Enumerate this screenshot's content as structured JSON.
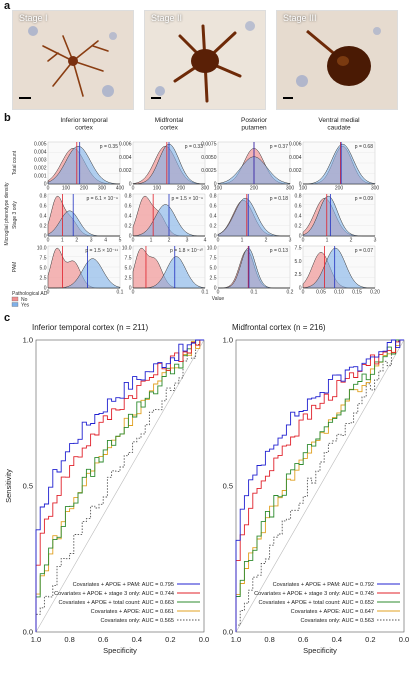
{
  "panel_a": {
    "letter": "a",
    "stages": [
      "Stage I",
      "Stage II",
      "Stage III"
    ]
  },
  "panel_b": {
    "letter": "b",
    "columns": [
      {
        "title": [
          "Inferior temporal",
          "cortex"
        ]
      },
      {
        "title": [
          "Midfrontal",
          "cortex"
        ]
      },
      {
        "title": [
          "Posterior",
          "putamen"
        ]
      },
      {
        "title": [
          "Ventral medial",
          "caudate"
        ]
      }
    ],
    "row_labels": [
      "Total count",
      "Stage 3 only",
      "PAM"
    ],
    "shared_ylabel": "Microglial phenotype density",
    "xlabel": "Value",
    "legend_title": "Pathological AD",
    "legend_items": [
      {
        "label": "No",
        "color": "#f08f8f"
      },
      {
        "label": "Yes",
        "color": "#7fb0e8"
      }
    ],
    "pvalues": [
      [
        "p = 0.35",
        "p = 0.33",
        "p = 0.37",
        "p = 0.68"
      ],
      [
        "p = 6.1 × 10⁻⁹",
        "p = 1.5 × 10⁻⁹",
        "p = 0.18",
        "p = 0.09"
      ],
      [
        "p = 1.5 × 10⁻¹¹",
        "p = 1.8 × 10⁻¹⁰",
        "p = 0.13",
        "p = 0.07"
      ]
    ],
    "x_ticks": [
      [
        [
          "0",
          "100",
          "200",
          "300",
          "400"
        ],
        [
          "0",
          "100",
          "200",
          "300"
        ],
        [
          "100",
          "200",
          "300"
        ],
        [
          "100",
          "200",
          "300"
        ]
      ],
      [
        [
          "0",
          "1",
          "2",
          "3",
          "4",
          "5"
        ],
        [
          "0",
          "1",
          "2",
          "3",
          "4"
        ],
        [
          "0",
          "1",
          "2",
          "3"
        ],
        [
          "0",
          "1",
          "2",
          "3"
        ]
      ],
      [
        [
          "0",
          "0.1"
        ],
        [
          "0",
          "0.1"
        ],
        [
          "0",
          "0.1",
          "0.2"
        ],
        [
          "0",
          "0.05",
          "0.10",
          "0.15",
          "0.20"
        ]
      ]
    ],
    "y_ticks": [
      [
        [
          "0",
          "0.001",
          "0.002",
          "0.003",
          "0.004",
          "0.005"
        ],
        [
          "0",
          "0.002",
          "0.004",
          "0.006"
        ],
        [
          "0",
          "0.0025",
          "0.0050",
          "0.0075"
        ],
        [
          "0",
          "0.002",
          "0.004",
          "0.006"
        ]
      ],
      [
        [
          "0",
          "0.2",
          "0.4",
          "0.6",
          "0.8"
        ],
        [
          "0",
          "0.2",
          "0.4",
          "0.6",
          "0.8"
        ],
        [
          "0",
          "0.2",
          "0.4",
          "0.6",
          "0.8"
        ],
        [
          "0",
          "0.2",
          "0.4",
          "0.6",
          "0.8"
        ]
      ],
      [
        [
          "0",
          "2.5",
          "5.0",
          "7.5",
          "10.0"
        ],
        [
          "0",
          "2.5",
          "5.0",
          "7.5",
          "10.0"
        ],
        [
          "0",
          "2.5",
          "5.0",
          "7.5",
          "10.0"
        ],
        [
          "0",
          "2.5",
          "5.0",
          "7.5"
        ]
      ]
    ]
  },
  "panel_c": {
    "letter": "c",
    "xlabel": "Specificity",
    "ylabel": "Sensitivity",
    "x_ticks": [
      "1.0",
      "0.8",
      "0.6",
      "0.4",
      "0.2",
      "0.0"
    ],
    "y_ticks": [
      "0.0",
      "0.5",
      "1.0"
    ],
    "plots": [
      {
        "title": "Inferior temporal cortex (n = 211)",
        "legend": [
          "Covariates + APOE + PAM: AUC = 0.795",
          "Covariates + APOE + stage 3 only: AUC = 0.744",
          "Covariates + APOE + total count: AUC = 0.663",
          "Covariates + APOE: AUC = 0.661",
          "Covariates only: AUC = 0.565"
        ]
      },
      {
        "title": "Midfrontal cortex (n = 216)",
        "legend": [
          "Covariates + APOE + PAM: AUC = 0.792",
          "Covariates + APOE + stage 3 only: AUC = 0.745",
          "Covariates + APOE + total count: AUC = 0.652",
          "Covariates + APOE: AUC = 0.647",
          "Covariates only: AUC = 0.563"
        ]
      }
    ],
    "curve_colors": [
      "#2020d0",
      "#e0202a",
      "#2e8b2e",
      "#e0a020",
      "#555555"
    ]
  },
  "chart_data": [
    {
      "type": "area",
      "subplot": "Inferior temporal cortex / Total count",
      "series": [
        {
          "name": "No",
          "peak_x": 150
        },
        {
          "name": "Yes",
          "peak_x": 170
        }
      ],
      "xlim": [
        0,
        400
      ],
      "ylim": [
        0,
        0.005
      ]
    },
    {
      "type": "area",
      "subplot": "Inferior temporal cortex / Stage 3 only",
      "series": [
        {
          "name": "No",
          "peak_x": 0.6
        },
        {
          "name": "Yes",
          "peak_x": 1.4
        }
      ],
      "xlim": [
        0,
        5
      ],
      "ylim": [
        0,
        0.8
      ]
    },
    {
      "type": "area",
      "subplot": "Inferior temporal cortex / PAM",
      "series": [
        {
          "name": "No",
          "peak_x": 0.02
        },
        {
          "name": "Yes",
          "peak_x": 0.1
        }
      ],
      "xlim": [
        0,
        0.15
      ],
      "ylim": [
        0,
        10
      ]
    },
    {
      "type": "line",
      "subplot": "Inferior temporal cortex ROC",
      "xlabel": "Specificity",
      "ylabel": "Sensitivity",
      "series": [
        {
          "name": "Covariates + APOE + PAM",
          "auc": 0.795
        },
        {
          "name": "Covariates + APOE + stage 3 only",
          "auc": 0.744
        },
        {
          "name": "Covariates + APOE + total count",
          "auc": 0.663
        },
        {
          "name": "Covariates + APOE",
          "auc": 0.661
        },
        {
          "name": "Covariates only",
          "auc": 0.565
        }
      ]
    },
    {
      "type": "line",
      "subplot": "Midfrontal cortex ROC",
      "xlabel": "Specificity",
      "ylabel": "Sensitivity",
      "series": [
        {
          "name": "Covariates + APOE + PAM",
          "auc": 0.792
        },
        {
          "name": "Covariates + APOE + stage 3 only",
          "auc": 0.745
        },
        {
          "name": "Covariates + APOE + total count",
          "auc": 0.652
        },
        {
          "name": "Covariates + APOE",
          "auc": 0.647
        },
        {
          "name": "Covariates only",
          "auc": 0.563
        }
      ]
    }
  ]
}
